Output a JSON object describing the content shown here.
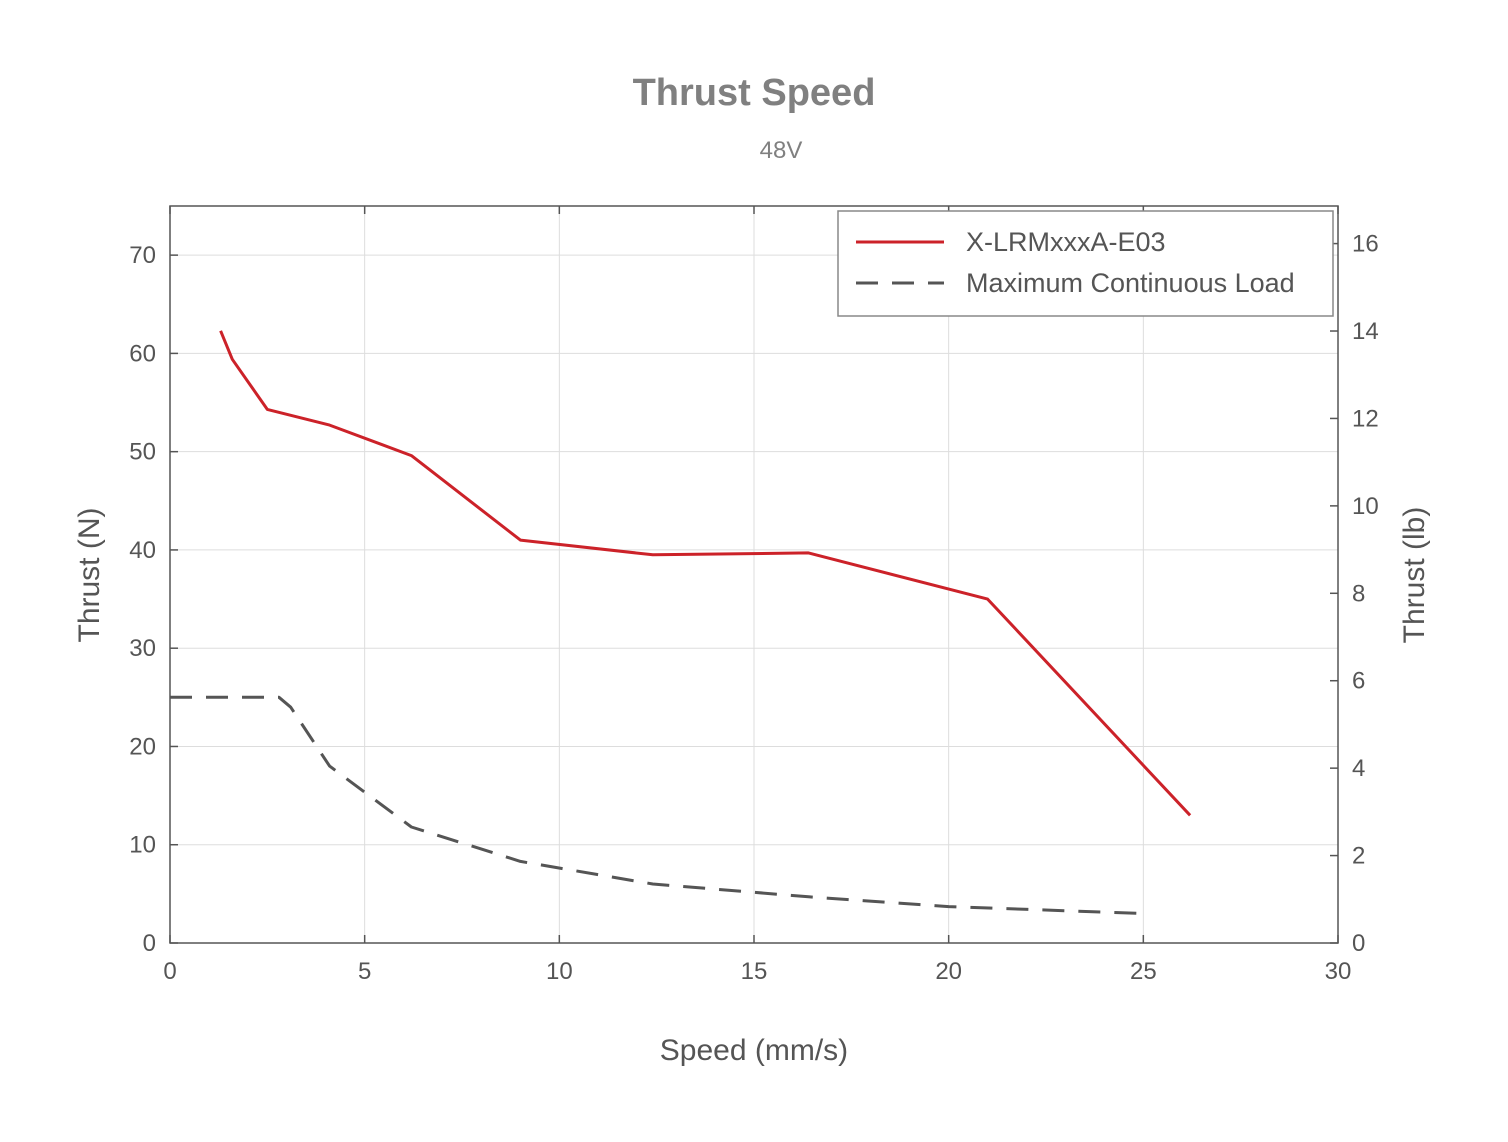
{
  "chart_data": {
    "type": "line",
    "title": "Thrust Speed",
    "subtitle": "48V",
    "xlabel": "Speed (mm/s)",
    "ylabel": "Thrust (N)",
    "y2label": "Thrust (lb)",
    "xlim": [
      0,
      30
    ],
    "ylim": [
      0,
      75
    ],
    "y2lim": [
      0,
      16.86
    ],
    "xticks": [
      0,
      5,
      10,
      15,
      20,
      25,
      30
    ],
    "yticks": [
      0,
      10,
      20,
      30,
      40,
      50,
      60,
      70
    ],
    "y2ticks": [
      0,
      2,
      4,
      6,
      8,
      10,
      12,
      14,
      16
    ],
    "grid": true,
    "legend_position": "top-right",
    "series": [
      {
        "name": "X-LRMxxxA-E03",
        "color": "#cc2229",
        "style": "solid",
        "x": [
          1.3,
          1.6,
          2.5,
          4.1,
          6.2,
          9.0,
          12.4,
          16.4,
          21.0,
          26.2
        ],
        "y": [
          62.3,
          59.4,
          54.3,
          52.7,
          49.6,
          41.0,
          39.5,
          39.7,
          35.0,
          13.0
        ]
      },
      {
        "name": "Maximum Continuous Load",
        "color": "#555555",
        "style": "dashed",
        "x": [
          0,
          2.8,
          3.1,
          4.1,
          6.2,
          9.0,
          12.4,
          16.4,
          20.0,
          25.0,
          25.0
        ],
        "y": [
          25.0,
          25.0,
          24.0,
          18.0,
          11.8,
          8.3,
          6.0,
          4.7,
          3.7,
          3.0,
          2.5
        ]
      }
    ]
  }
}
